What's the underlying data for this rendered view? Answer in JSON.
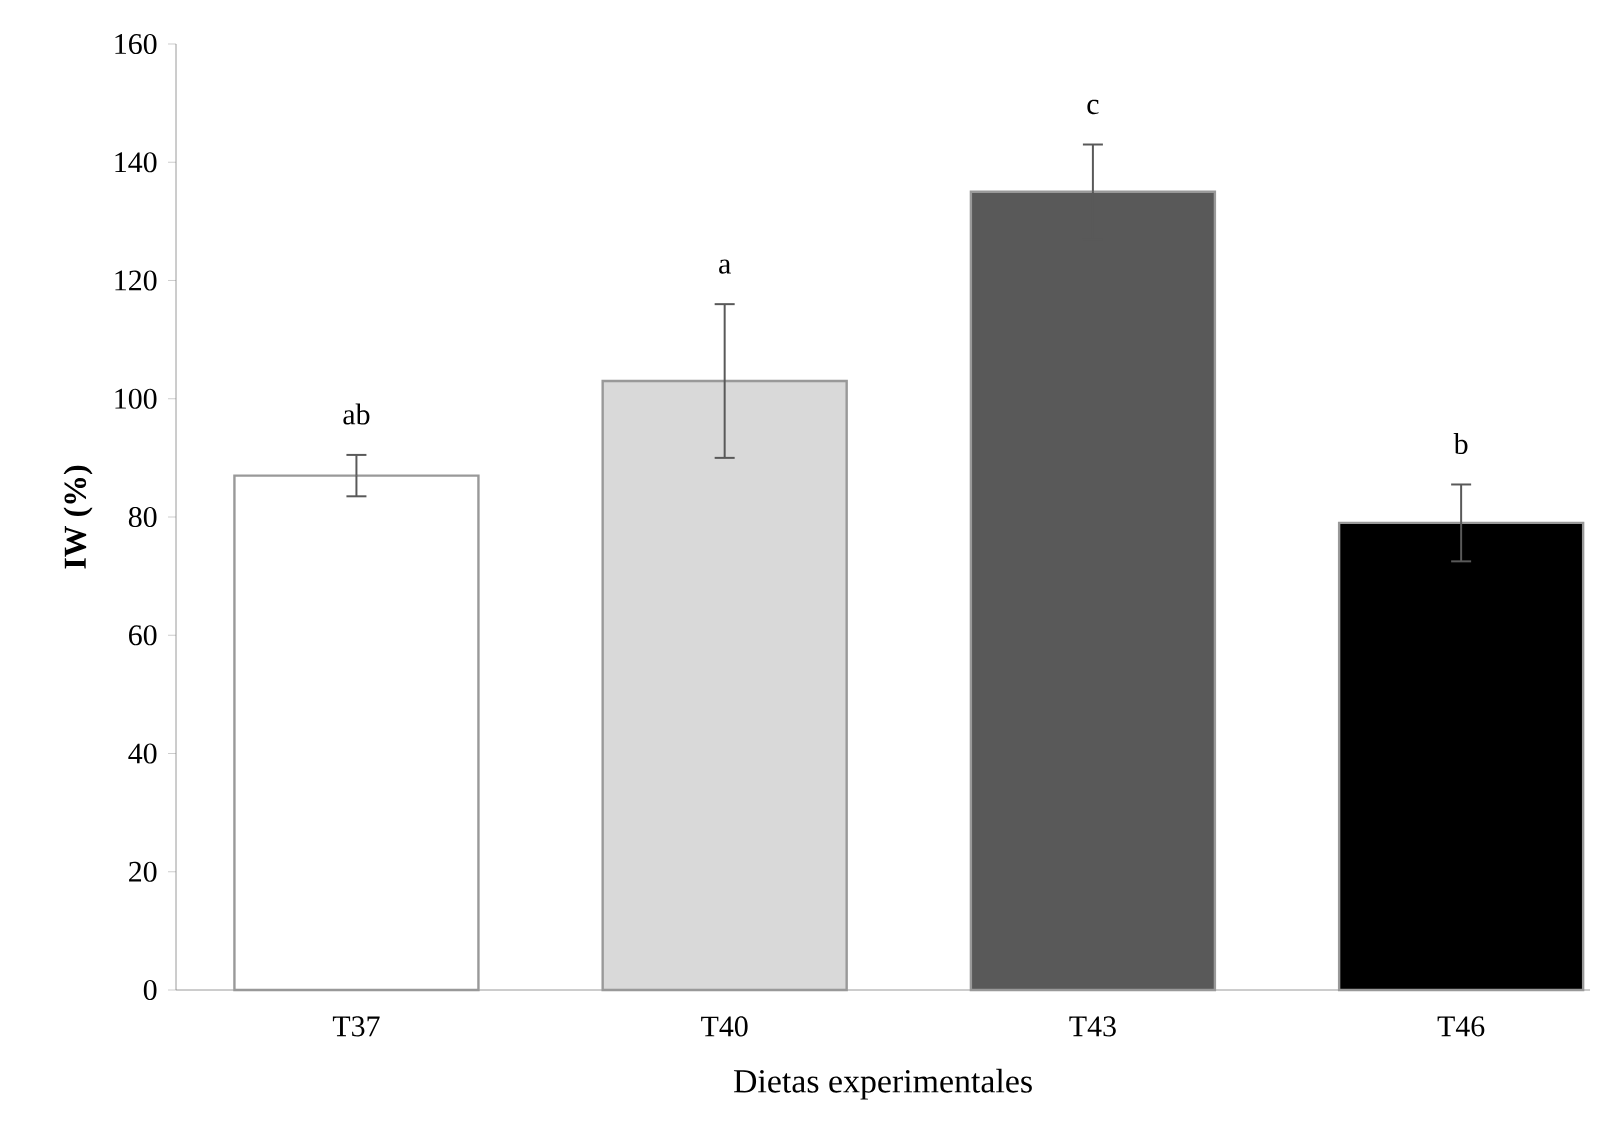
{
  "chart_data": {
    "type": "bar",
    "xlabel": "Dietas experimentales",
    "ylabel": "IW  (%)",
    "categories": [
      "T37",
      "T40",
      "T43",
      "T46"
    ],
    "values": [
      87,
      103,
      135,
      79
    ],
    "colors": [
      "#ffffff",
      "#d9d9d9",
      "#595959",
      "#000000"
    ],
    "errors": [
      3.5,
      13,
      8,
      6.5
    ],
    "ylim": [
      0,
      160
    ],
    "yticks": [
      0,
      20,
      40,
      60,
      80,
      100,
      120,
      140,
      160
    ],
    "grid": false,
    "annotations": [
      "ab",
      "a",
      "c",
      "b"
    ]
  }
}
